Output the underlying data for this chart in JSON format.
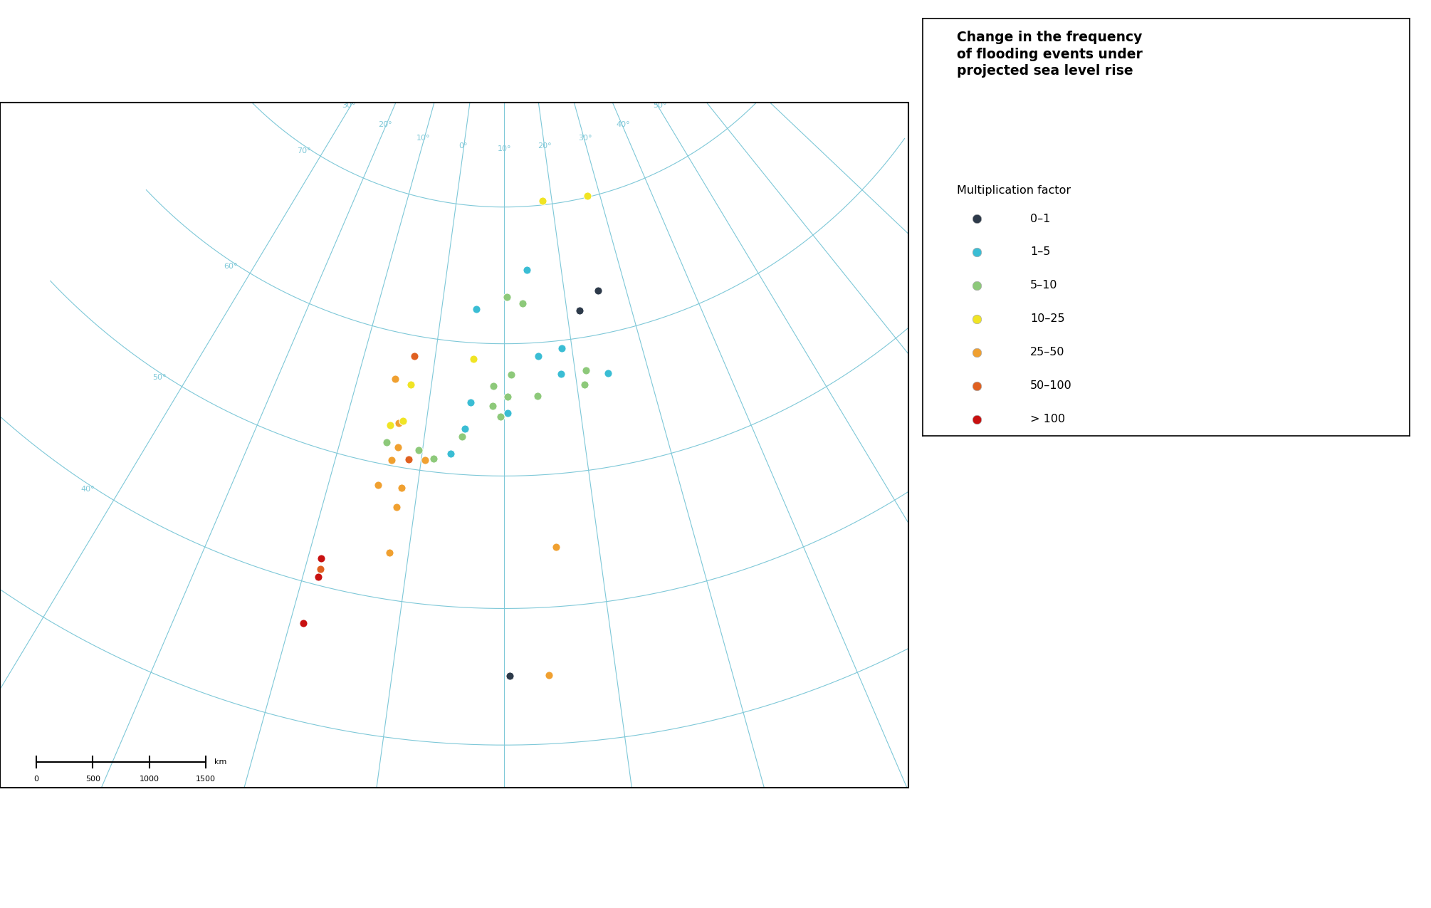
{
  "title": "Change in the frequency\nof flooding events under\nprojected sea level rise",
  "legend_subtitle": "Multiplication factor",
  "legend_labels": [
    "0–1",
    "1–5",
    "5–10",
    "10–25",
    "25–50",
    "50–100",
    "> 100"
  ],
  "legend_colors": [
    "#2d3a4a",
    "#3abdd4",
    "#8dc97a",
    "#f0e424",
    "#f0a030",
    "#e06020",
    "#c81010"
  ],
  "map_ocean_color": "#b8d8e8",
  "map_land_color": "#d0d0d0",
  "map_border_color": "#606060",
  "map_graticule_color": "#7ec8d8",
  "points": [
    {
      "lon": 18.0,
      "lat": 70.3,
      "cat": 3
    },
    {
      "lon": 27.5,
      "lat": 70.1,
      "cat": 3
    },
    {
      "lon": 14.0,
      "lat": 65.4,
      "cat": 1
    },
    {
      "lon": 25.5,
      "lat": 63.2,
      "cat": 0
    },
    {
      "lon": 22.0,
      "lat": 62.0,
      "cat": 0
    },
    {
      "lon": 13.0,
      "lat": 63.0,
      "cat": 2
    },
    {
      "lon": 5.5,
      "lat": 62.5,
      "cat": 1
    },
    {
      "lon": 10.5,
      "lat": 63.5,
      "cat": 2
    },
    {
      "lon": 5.5,
      "lat": 58.8,
      "cat": 3
    },
    {
      "lon": 18.5,
      "lat": 59.4,
      "cat": 1
    },
    {
      "lon": 15.0,
      "lat": 59.0,
      "cat": 1
    },
    {
      "lon": 11.0,
      "lat": 57.7,
      "cat": 2
    },
    {
      "lon": 18.0,
      "lat": 57.5,
      "cat": 1
    },
    {
      "lon": 21.5,
      "lat": 57.5,
      "cat": 2
    },
    {
      "lon": 24.5,
      "lat": 57.0,
      "cat": 1
    },
    {
      "lon": 21.0,
      "lat": 56.5,
      "cat": 2
    },
    {
      "lon": 14.5,
      "lat": 56.0,
      "cat": 2
    },
    {
      "lon": 10.5,
      "lat": 56.0,
      "cat": 2
    },
    {
      "lon": 8.5,
      "lat": 56.8,
      "cat": 2
    },
    {
      "lon": 5.5,
      "lat": 55.5,
      "cat": 1
    },
    {
      "lon": 8.5,
      "lat": 55.3,
      "cat": 2
    },
    {
      "lon": 10.5,
      "lat": 54.8,
      "cat": 1
    },
    {
      "lon": 9.5,
      "lat": 54.5,
      "cat": 2
    },
    {
      "lon": 5.0,
      "lat": 53.5,
      "cat": 1
    },
    {
      "lon": 4.7,
      "lat": 52.9,
      "cat": 2
    },
    {
      "lon": 3.5,
      "lat": 51.5,
      "cat": 1
    },
    {
      "lon": 1.5,
      "lat": 51.0,
      "cat": 2
    },
    {
      "lon": 0.5,
      "lat": 50.8,
      "cat": 4
    },
    {
      "lon": -0.5,
      "lat": 51.5,
      "cat": 2
    },
    {
      "lon": -1.5,
      "lat": 50.7,
      "cat": 5
    },
    {
      "lon": -3.5,
      "lat": 50.4,
      "cat": 4
    },
    {
      "lon": -3.0,
      "lat": 51.5,
      "cat": 4
    },
    {
      "lon": -4.5,
      "lat": 51.7,
      "cat": 2
    },
    {
      "lon": -3.5,
      "lat": 53.3,
      "cat": 4
    },
    {
      "lon": -3.0,
      "lat": 53.5,
      "cat": 3
    },
    {
      "lon": -4.5,
      "lat": 53.0,
      "cat": 3
    },
    {
      "lon": -2.8,
      "lat": 56.3,
      "cat": 3
    },
    {
      "lon": -5.0,
      "lat": 56.5,
      "cat": 4
    },
    {
      "lon": -3.0,
      "lat": 58.5,
      "cat": 5
    },
    {
      "lon": -8.7,
      "lat": 42.0,
      "cat": 6
    },
    {
      "lon": -8.5,
      "lat": 41.2,
      "cat": 5
    },
    {
      "lon": -8.5,
      "lat": 40.6,
      "cat": 6
    },
    {
      "lon": -8.8,
      "lat": 37.0,
      "cat": 6
    },
    {
      "lon": -2.0,
      "lat": 43.5,
      "cat": 4
    },
    {
      "lon": -1.8,
      "lat": 48.5,
      "cat": 4
    },
    {
      "lon": -4.5,
      "lat": 48.4,
      "cat": 4
    },
    {
      "lon": -2.0,
      "lat": 47.0,
      "cat": 4
    },
    {
      "lon": 15.5,
      "lat": 44.5,
      "cat": 4
    },
    {
      "lon": 14.0,
      "lat": 35.0,
      "cat": 4
    },
    {
      "lon": 10.5,
      "lat": 35.0,
      "cat": 0
    }
  ],
  "figsize": [
    20.1,
    12.75
  ],
  "dpi": 100
}
